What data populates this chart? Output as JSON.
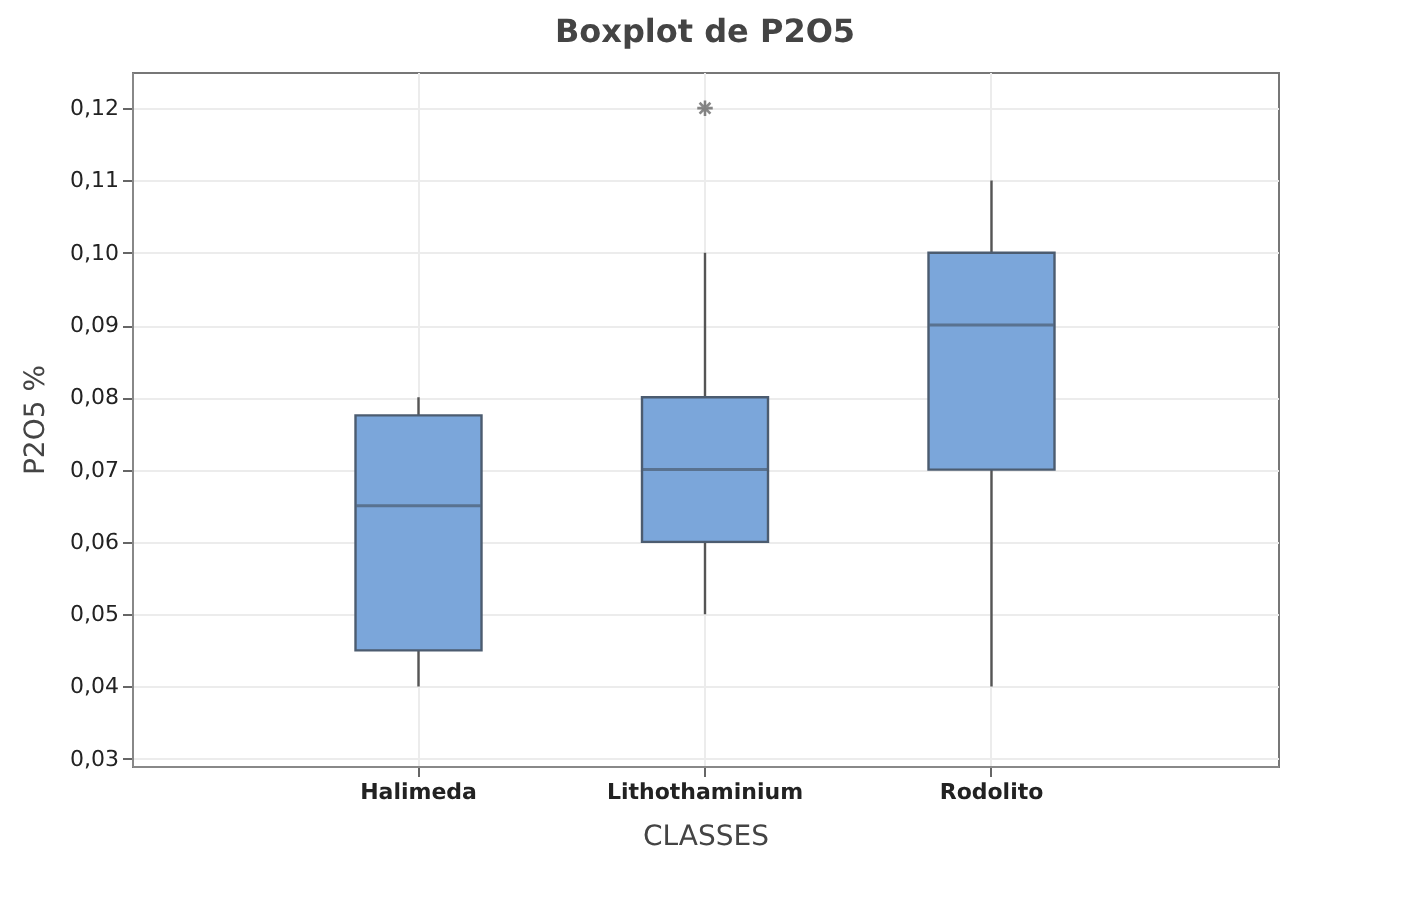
{
  "chart_data": {
    "type": "box",
    "title": "Boxplot de P2O5",
    "xlabel": "CLASSES",
    "ylabel": "P2O5 %",
    "categories": [
      "Halimeda",
      "Lithothaminium",
      "Rodolito"
    ],
    "boxes": [
      {
        "low": 0.04,
        "q1": 0.045,
        "median": 0.065,
        "q3": 0.0775,
        "high": 0.08
      },
      {
        "low": 0.05,
        "q1": 0.06,
        "median": 0.07,
        "q3": 0.08,
        "high": 0.1,
        "outliers": [
          0.12
        ]
      },
      {
        "low": 0.04,
        "q1": 0.07,
        "median": 0.09,
        "q3": 0.1,
        "high": 0.11
      }
    ],
    "color": "#7ba6da",
    "ylim": [
      0.029,
      0.125
    ],
    "yticks": [
      {
        "value": 0.03,
        "label": "0,03"
      },
      {
        "value": 0.04,
        "label": "0,04"
      },
      {
        "value": 0.05,
        "label": "0,05"
      },
      {
        "value": 0.06,
        "label": "0,06"
      },
      {
        "value": 0.07,
        "label": "0,07"
      },
      {
        "value": 0.08,
        "label": "0,08"
      },
      {
        "value": 0.09,
        "label": "0,09"
      },
      {
        "value": 0.1,
        "label": "0,10"
      },
      {
        "value": 0.11,
        "label": "0,11"
      },
      {
        "value": 0.12,
        "label": "0,12"
      }
    ],
    "grid": true
  }
}
